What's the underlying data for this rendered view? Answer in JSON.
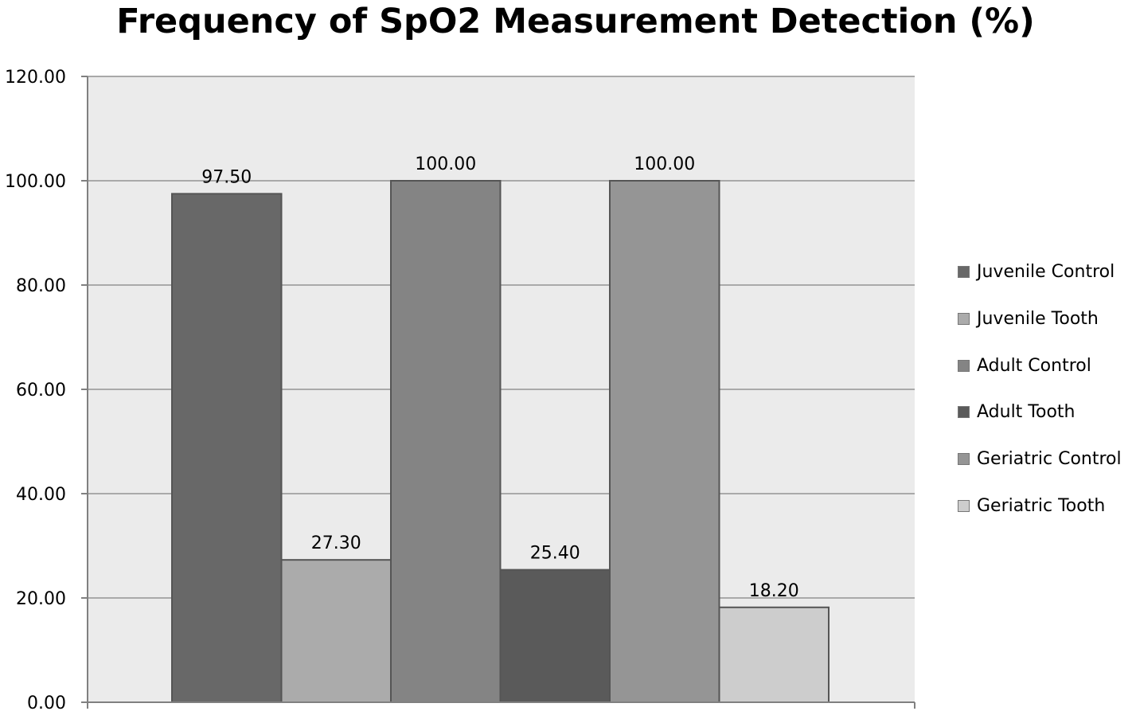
{
  "chart_data": {
    "type": "bar",
    "title": "Frequency of SpO2 Measurement Detection (%)",
    "xlabel": "",
    "ylabel": "",
    "ylim": [
      0,
      120
    ],
    "yticks": [
      0,
      20,
      40,
      60,
      80,
      100,
      120
    ],
    "ytick_labels": [
      "0.00",
      "20.00",
      "40.00",
      "60.00",
      "80.00",
      "100.00",
      "120.00"
    ],
    "grid": true,
    "legend_position": "right",
    "series": [
      {
        "name": "Juvenile Control",
        "value": 97.5,
        "label": "97.50",
        "color": "#686868"
      },
      {
        "name": "Juvenile Tooth",
        "value": 27.3,
        "label": "27.30",
        "color": "#ababab"
      },
      {
        "name": "Adult Control",
        "value": 100.0,
        "label": "100.00",
        "color": "#848484"
      },
      {
        "name": "Adult Tooth",
        "value": 25.4,
        "label": "25.40",
        "color": "#5a5a5a"
      },
      {
        "name": "Geriatric Control",
        "value": 100.0,
        "label": "100.00",
        "color": "#959595"
      },
      {
        "name": "Geriatric Tooth",
        "value": 18.2,
        "label": "18.20",
        "color": "#cdcdcd"
      }
    ],
    "colors": {
      "plot_background": "#ebebeb",
      "gridline": "#a9a9a9",
      "axis": "#808080",
      "bar_border": "#555555"
    }
  }
}
